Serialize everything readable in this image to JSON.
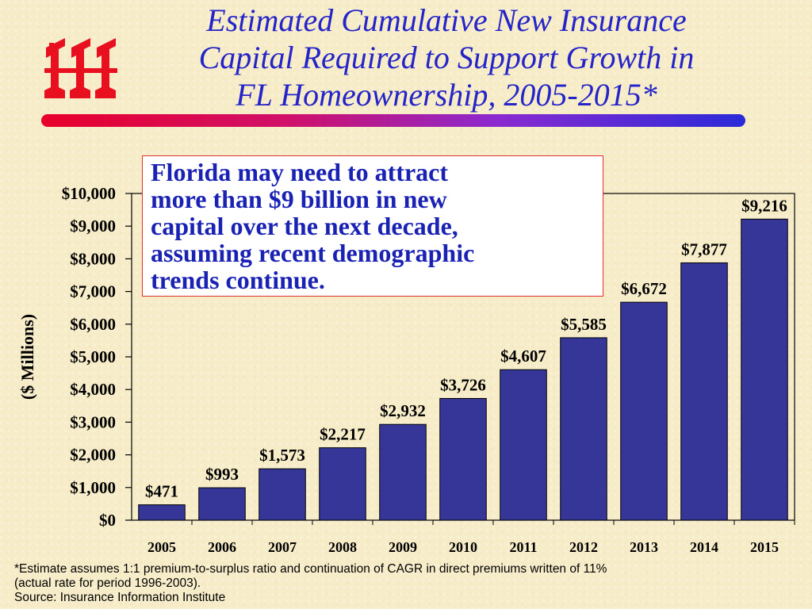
{
  "slide": {
    "title_lines": [
      "Estimated Cumulative New Insurance",
      "Capital Required to Support Growth in",
      "FL Homeownership, 2005-2015*"
    ],
    "callout_lines": [
      "Florida may need to attract",
      "more than $9 billion in new",
      "capital over the next decade,",
      "assuming recent demographic",
      "trends continue."
    ],
    "footnote_lines": [
      "*Estimate assumes 1:1 premium-to-surplus ratio and continuation of CAGR in direct premiums written of 11%",
      "(actual rate for period 1996-2003).",
      "Source:  Insurance Information Institute"
    ],
    "colors": {
      "title": "#2424c8",
      "bar": "#363699",
      "logo": "#e8101e",
      "callout_border": "#e03030"
    },
    "logo_icon": "iii-logo-icon"
  },
  "chart_data": {
    "type": "bar",
    "ylabel": "($ Millions)",
    "categories": [
      "2005",
      "2006",
      "2007",
      "2008",
      "2009",
      "2010",
      "2011",
      "2012",
      "2013",
      "2014",
      "2015"
    ],
    "values": [
      471,
      993,
      1573,
      2217,
      2932,
      3726,
      4607,
      5585,
      6672,
      7877,
      9216
    ],
    "value_labels": [
      "$471",
      "$993",
      "$1,573",
      "$2,217",
      "$2,932",
      "$3,726",
      "$4,607",
      "$5,585",
      "$6,672",
      "$7,877",
      "$9,216"
    ],
    "yticks": [
      0,
      1000,
      2000,
      3000,
      4000,
      5000,
      6000,
      7000,
      8000,
      9000,
      10000
    ],
    "ytick_labels": [
      "$0",
      "$1,000",
      "$2,000",
      "$3,000",
      "$4,000",
      "$5,000",
      "$6,000",
      "$7,000",
      "$8,000",
      "$9,000",
      "$10,000"
    ],
    "ylim": [
      0,
      10000
    ],
    "grid": false
  }
}
